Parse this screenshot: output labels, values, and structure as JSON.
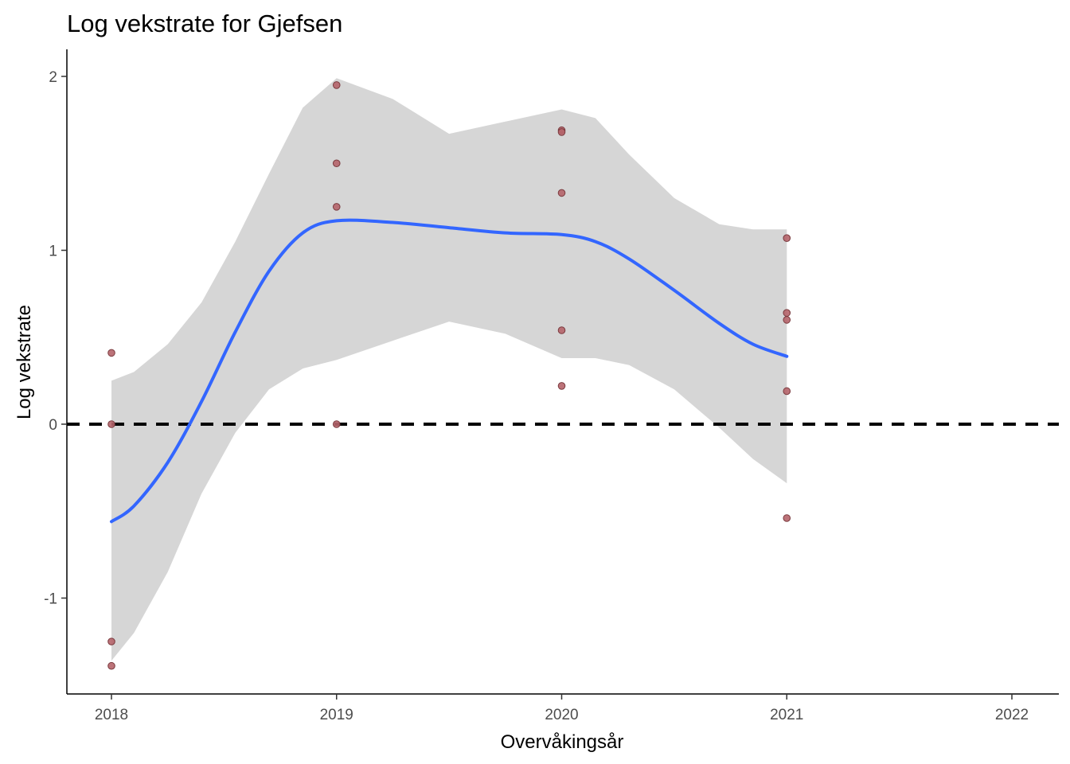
{
  "chart_data": {
    "type": "scatter",
    "title": "Log vekstrate for Gjefsen",
    "xlabel": "Overvåkingsår",
    "ylabel": "Log vekstrate",
    "xlim": [
      2017.8,
      2022.2
    ],
    "ylim": [
      -1.55,
      2.15
    ],
    "x_ticks": [
      2018,
      2019,
      2020,
      2021,
      2022
    ],
    "y_ticks": [
      -1,
      0,
      1,
      2
    ],
    "grid": false,
    "reference_line": {
      "y": 0,
      "style": "dashed",
      "color": "#000000"
    },
    "points": [
      {
        "x": 2018,
        "y": 0.41
      },
      {
        "x": 2018,
        "y": 0.0
      },
      {
        "x": 2018,
        "y": -1.25
      },
      {
        "x": 2018,
        "y": -1.39
      },
      {
        "x": 2019,
        "y": 1.95
      },
      {
        "x": 2019,
        "y": 1.5
      },
      {
        "x": 2019,
        "y": 1.25
      },
      {
        "x": 2019,
        "y": 0.0
      },
      {
        "x": 2020,
        "y": 1.69
      },
      {
        "x": 2020,
        "y": 1.68
      },
      {
        "x": 2020,
        "y": 1.33
      },
      {
        "x": 2020,
        "y": 0.54
      },
      {
        "x": 2020,
        "y": 0.22
      },
      {
        "x": 2021,
        "y": 1.07
      },
      {
        "x": 2021,
        "y": 0.64
      },
      {
        "x": 2021,
        "y": 0.6
      },
      {
        "x": 2021,
        "y": 0.19
      },
      {
        "x": 2021,
        "y": -0.54
      }
    ],
    "smooth": {
      "x": [
        2018.0,
        2018.1,
        2018.25,
        2018.4,
        2018.55,
        2018.7,
        2018.85,
        2019.0,
        2019.25,
        2019.5,
        2019.75,
        2020.0,
        2020.15,
        2020.3,
        2020.5,
        2020.7,
        2020.85,
        2021.0
      ],
      "y": [
        -0.56,
        -0.47,
        -0.22,
        0.13,
        0.53,
        0.88,
        1.1,
        1.17,
        1.16,
        1.13,
        1.1,
        1.09,
        1.05,
        0.95,
        0.77,
        0.58,
        0.46,
        0.39
      ],
      "lower": [
        -1.36,
        -1.2,
        -0.85,
        -0.4,
        -0.05,
        0.2,
        0.32,
        0.37,
        0.48,
        0.59,
        0.52,
        0.38,
        0.38,
        0.34,
        0.2,
        -0.02,
        -0.2,
        -0.34
      ],
      "upper": [
        0.25,
        0.3,
        0.46,
        0.7,
        1.05,
        1.44,
        1.82,
        1.99,
        1.87,
        1.67,
        1.74,
        1.81,
        1.76,
        1.55,
        1.3,
        1.15,
        1.12,
        1.12
      ]
    },
    "colors": {
      "point": "#b5646a",
      "point_edge": "#7a3a3e",
      "line": "#3366ff",
      "band": "#d6d6d6",
      "axis": "#000000"
    }
  }
}
